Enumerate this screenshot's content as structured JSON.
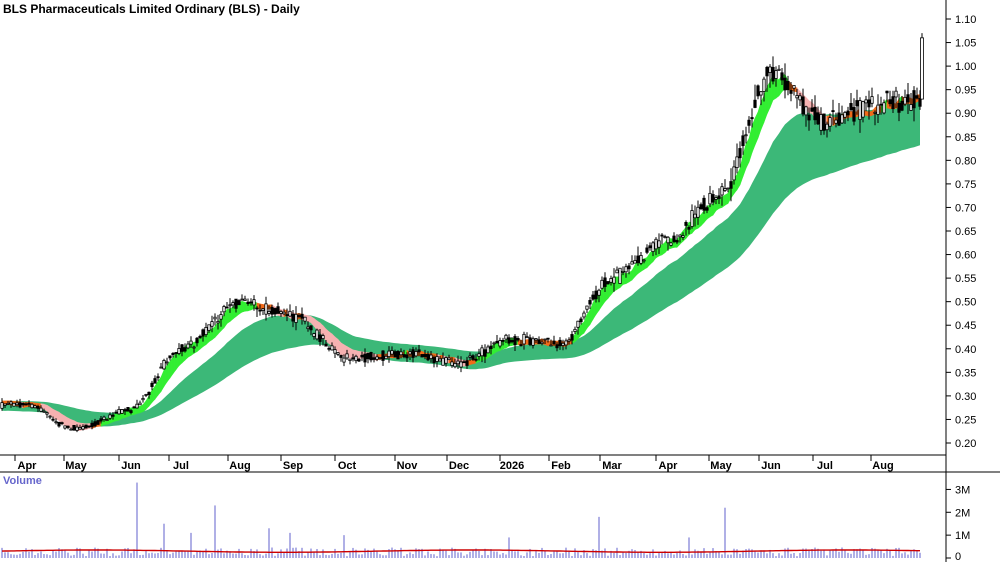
{
  "chart_data": {
    "type": "candlestick",
    "title": "BLS Pharmaceuticals Limited Ordinary (BLS) - Daily",
    "y_ticks": [
      "1.10",
      "1.05",
      "1.00",
      "0.95",
      "0.90",
      "0.85",
      "0.80",
      "0.75",
      "0.70",
      "0.65",
      "0.60",
      "0.55",
      "0.50",
      "0.45",
      "0.40",
      "0.35",
      "0.30",
      "0.25",
      "0.20"
    ],
    "ylim": [
      0.17,
      1.12
    ],
    "x_ticks": [
      "Apr",
      "May",
      "Jun",
      "Jul",
      "Aug",
      "Sep",
      "Oct",
      "Nov",
      "Dec",
      "2026",
      "Feb",
      "Mar",
      "Apr",
      "May",
      "Jun",
      "Jul",
      "Aug"
    ],
    "price_path": [
      {
        "month": "Apr",
        "value": 0.28
      },
      {
        "month": "May",
        "value": 0.23
      },
      {
        "month": "Jun",
        "value": 0.27
      },
      {
        "month": "Jul",
        "value": 0.4
      },
      {
        "month": "Aug",
        "value": 0.5
      },
      {
        "month": "Sep",
        "value": 0.47
      },
      {
        "month": "Oct",
        "value": 0.38
      },
      {
        "month": "Nov",
        "value": 0.39
      },
      {
        "month": "Dec",
        "value": 0.37
      },
      {
        "month": "2026",
        "value": 0.42
      },
      {
        "month": "Feb",
        "value": 0.41
      },
      {
        "month": "Mar",
        "value": 0.55
      },
      {
        "month": "Apr",
        "value": 0.63
      },
      {
        "month": "May",
        "value": 0.73
      },
      {
        "month": "Jun",
        "value": 0.98
      },
      {
        "month": "Jul",
        "value": 0.88
      },
      {
        "month": "Aug",
        "value": 0.92
      }
    ],
    "last_price_range": [
      0.93,
      1.07
    ],
    "short_term_band_colors": {
      "rising": "#33ee33",
      "falling": "#f6b1b1",
      "crossover": "#f06a1a"
    },
    "long_term_band_color": "#3cb878",
    "volume_panel": {
      "title": "Volume",
      "y_ticks": [
        "3M",
        "2M",
        "1M",
        "0"
      ],
      "ylim": [
        0,
        3.5
      ],
      "bar_color": "#7b7bd6",
      "average_line_color": "#cc0000",
      "average_level": 0.3
    }
  }
}
